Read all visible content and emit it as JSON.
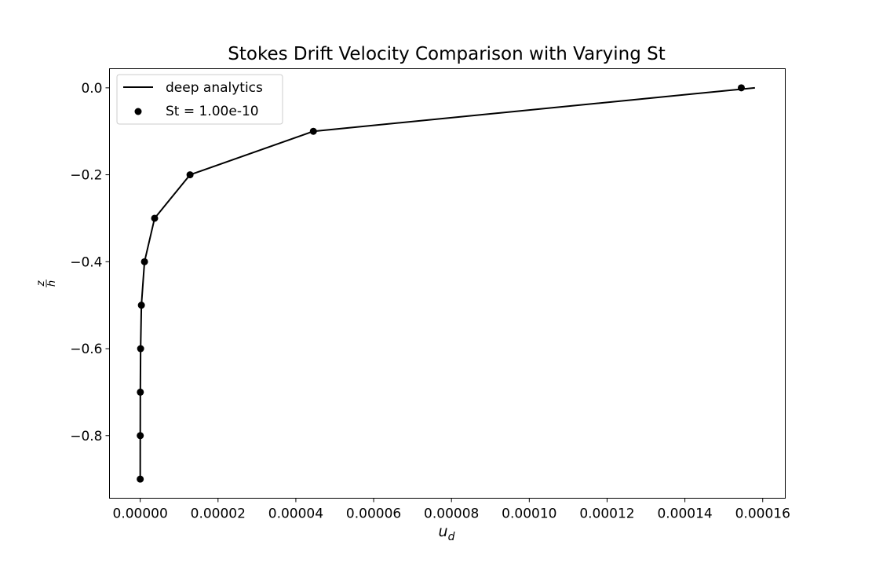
{
  "chart_data": {
    "type": "line",
    "title": "Stokes Drift Velocity Comparison with Varying St",
    "xlabel": "u",
    "xlabel_sub": "d",
    "ylabel_num": "z",
    "ylabel_den": "h",
    "xlim": [
      -7.9e-06,
      0.0001658
    ],
    "ylim": [
      -0.944,
      0.044
    ],
    "x_ticks": [
      0,
      2e-05,
      4e-05,
      6e-05,
      8e-05,
      0.0001,
      0.00012,
      0.00014,
      0.00016
    ],
    "x_tick_labels": [
      "0.00000",
      "0.00002",
      "0.00004",
      "0.00006",
      "0.00008",
      "0.00010",
      "0.00012",
      "0.00014",
      "0.00016"
    ],
    "y_ticks": [
      0,
      -0.2,
      -0.4,
      -0.6,
      -0.8
    ],
    "y_tick_labels": [
      "0.0",
      "−0.2",
      "−0.4",
      "−0.6",
      "−0.8"
    ],
    "grid": false,
    "legend_position": "upper-left",
    "series": [
      {
        "name": "deep analytics",
        "kind": "line",
        "color": "#000000",
        "x": [
          0.000158,
          4.45e-05,
          1.28e-05,
          3.7e-06,
          1.1e-06,
          3e-07,
          1e-07,
          3e-08,
          1e-08,
          0.0
        ],
        "y": [
          0.0,
          -0.1,
          -0.2,
          -0.3,
          -0.4,
          -0.5,
          -0.6,
          -0.7,
          -0.8,
          -0.9
        ]
      },
      {
        "name": "St = 1.00e-10",
        "kind": "scatter",
        "color": "#000000",
        "x": [
          0.0001545,
          4.45e-05,
          1.28e-05,
          3.7e-06,
          1.1e-06,
          3e-07,
          1e-07,
          3e-08,
          1e-08,
          0.0
        ],
        "y": [
          0.0,
          -0.1,
          -0.2,
          -0.3,
          -0.4,
          -0.5,
          -0.6,
          -0.7,
          -0.8,
          -0.9
        ]
      }
    ]
  }
}
